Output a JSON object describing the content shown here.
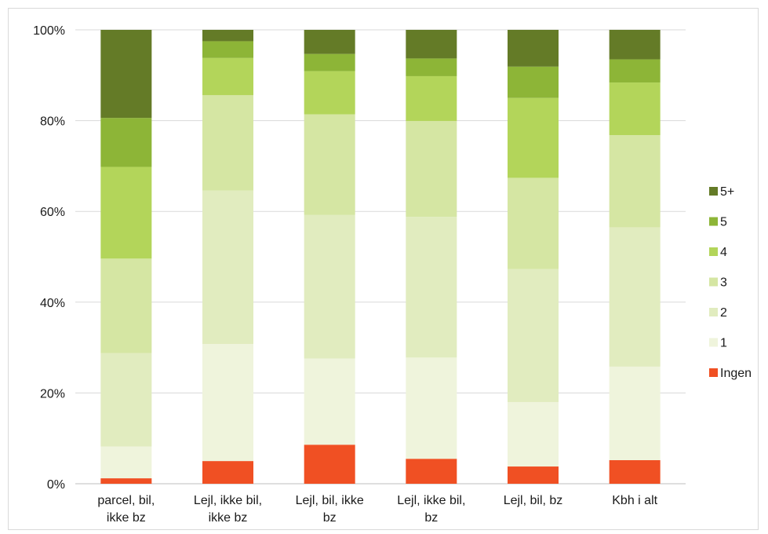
{
  "chart_data": {
    "type": "bar",
    "stacked": true,
    "percent": true,
    "categories": [
      [
        "parcel, bil,",
        "ikke bz"
      ],
      [
        "Lejl, ikke bil,",
        "ikke bz"
      ],
      [
        "Lejl, bil, ikke",
        "bz"
      ],
      [
        "Lejl, ikke bil,",
        "bz"
      ],
      [
        "Lejl, bil, bz"
      ],
      [
        "Kbh i alt"
      ]
    ],
    "series": [
      {
        "name": "Ingen",
        "color": "#f05023",
        "values": [
          1.2,
          5.0,
          8.6,
          5.5,
          3.8,
          5.2
        ]
      },
      {
        "name": "1",
        "color": "#eff4dc",
        "values": [
          7.0,
          25.8,
          19.0,
          22.3,
          14.2,
          20.6
        ]
      },
      {
        "name": "2",
        "color": "#e1ecbf",
        "values": [
          20.6,
          33.8,
          31.6,
          31.0,
          29.3,
          30.7
        ]
      },
      {
        "name": "3",
        "color": "#d5e6a3",
        "values": [
          20.8,
          21.0,
          22.2,
          21.1,
          20.1,
          20.3
        ]
      },
      {
        "name": "4",
        "color": "#b3d55a",
        "values": [
          20.2,
          8.2,
          9.5,
          9.9,
          17.6,
          11.6
        ]
      },
      {
        "name": "5",
        "color": "#8db537",
        "values": [
          10.8,
          3.7,
          3.8,
          3.9,
          6.9,
          5.1
        ]
      },
      {
        "name": "5+",
        "color": "#647b27",
        "values": [
          19.4,
          2.5,
          5.3,
          6.3,
          8.1,
          6.5
        ]
      }
    ],
    "ylim": [
      0,
      100
    ],
    "yticks": [
      "0%",
      "20%",
      "40%",
      "60%",
      "80%",
      "100%"
    ],
    "grid": true,
    "legend_position": "right",
    "legend_order": [
      "5+",
      "5",
      "4",
      "3",
      "2",
      "1",
      "Ingen"
    ]
  }
}
